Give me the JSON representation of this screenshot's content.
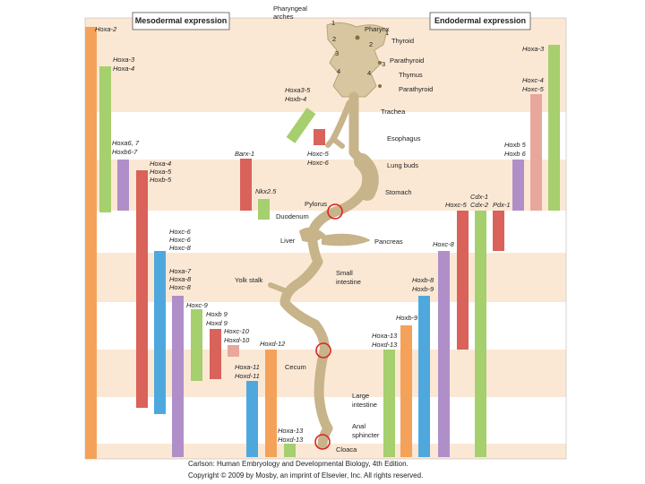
{
  "header": {
    "mesodermal": "Mesodermal expression",
    "endodermal": "Endodermal expression"
  },
  "mesodermal_genes": [
    "Hoxa-2",
    "Hoxa-3",
    "Hoxa-4",
    "Hoxa6, 7",
    "Hoxb6-7",
    "Hoxa-4",
    "Hoxa-5",
    "Hoxb-5",
    "Hoxc-6",
    "Hoxc-6",
    "Hoxc-8",
    "Hoxa-7",
    "Hoxa-8",
    "Hoxc-8",
    "Hoxc-9",
    "Hoxb 9",
    "Hoxd 9",
    "Hoxc-10",
    "Hoxd-10",
    "Hoxa-11",
    "Hoxd-11",
    "Hoxd-12",
    "Hoxa-13",
    "Hoxd-13",
    "Barx-1",
    "Nkx2.5",
    "Hoxa3-5",
    "Hoxb-4",
    "Hoxc-5",
    "Hoxc-6"
  ],
  "endodermal_genes": [
    "Hoxa-3",
    "Hoxc-4",
    "Hoxc-5",
    "Hoxb 5",
    "Hoxb 6",
    "Cdx-1",
    "Hoxc-5",
    "Cdx-2",
    "Pdx-1",
    "Hoxc-8",
    "Hoxb-8",
    "Hoxb-9",
    "Hoxb-9",
    "Hoxa-13",
    "Hoxd-13"
  ],
  "anatomy": [
    "Pharyngeal",
    "arches",
    "Pharynx",
    "Thyroid",
    "Parathyroid",
    "Thymus",
    "Parathyroid",
    "Trachea",
    "Esophagus",
    "Lung buds",
    "Stomach",
    "Pylorus",
    "Duodenum",
    "Liver",
    "Pancreas",
    "Yolk stalk",
    "Small",
    "intestine",
    "Cecum",
    "Large",
    "intestine",
    "Anal",
    "sphincter",
    "Cloaca"
  ],
  "arch_numbers": [
    "1",
    "2",
    "3",
    "4"
  ],
  "caption": [
    "Carlson: Human Embryology and Developmental Biology, 4th Edition.",
    "Copyright © 2009 by Mosby, an imprint of Elsevier, Inc. All rights reserved."
  ]
}
